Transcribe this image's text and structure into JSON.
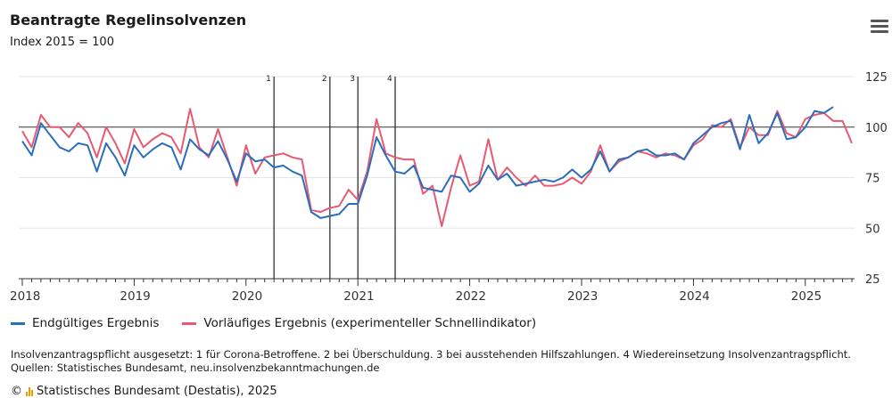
{
  "header": {
    "title": "Beantragte Regelinsolvenzen",
    "subtitle": "Index 2015 = 100",
    "menu_icon": "hamburger-menu-icon"
  },
  "legend": {
    "series1": "Endgültiges Ergebnis",
    "series2": "Vorläufiges Ergebnis (experimenteller Schnellindikator)"
  },
  "notes": {
    "line1": "Insolvenzantragspflicht ausgesetzt: 1 für Corona-Betroffene. 2 bei Überschuldung. 3 bei ausstehenden Hilfszahlungen. 4 Wiedereinsetzung Insolvenzantragspflicht.",
    "line2": "Quellen: Statistisches Bundesamt, neu.insolvenzbekanntmachungen.de"
  },
  "credit": "Statistisches Bundesamt (Destatis), 2025",
  "colors": {
    "final": "#2a6ebb",
    "preliminary": "#e85a71",
    "reference": "#333333",
    "grid": "#e6e6e6"
  },
  "chart_data": {
    "type": "line",
    "x_start": "2018-01",
    "x_ticks": [
      "2018",
      "2019",
      "2020",
      "2021",
      "2022",
      "2023",
      "2024",
      "2025"
    ],
    "y_ticks": [
      25,
      50,
      75,
      100,
      125
    ],
    "ylim": [
      25,
      125
    ],
    "reference_line": 100,
    "grid": true,
    "legend_position": "bottom",
    "vertical_markers": [
      {
        "label": "1",
        "date": "2020-04"
      },
      {
        "label": "2",
        "date": "2020-10"
      },
      {
        "label": "3",
        "date": "2021-01"
      },
      {
        "label": "4",
        "date": "2021-05"
      }
    ],
    "series": [
      {
        "name": "Endgültiges Ergebnis",
        "values": [
          93,
          86,
          102,
          96,
          90,
          88,
          92,
          91,
          78,
          92,
          85,
          76,
          91,
          85,
          89,
          92,
          90,
          79,
          94,
          89,
          86,
          93,
          84,
          73,
          87,
          83,
          84,
          80,
          81,
          78,
          76,
          58,
          55,
          56,
          57,
          62,
          62,
          76,
          95,
          86,
          78,
          77,
          81,
          70,
          69,
          68,
          76,
          75,
          68,
          72,
          81,
          74,
          77,
          71,
          72,
          73,
          74,
          73,
          75,
          79,
          75,
          79,
          88,
          78,
          84,
          85,
          88,
          89,
          86,
          86,
          87,
          84,
          92,
          96,
          100,
          102,
          103,
          89,
          106,
          92,
          97,
          107,
          94,
          95,
          100,
          108,
          107,
          110
        ]
      },
      {
        "name": "Vorläufiges Ergebnis (experimenteller Schnellindikator)",
        "values": [
          98,
          90,
          106,
          100,
          100,
          95,
          102,
          97,
          85,
          100,
          92,
          82,
          99,
          90,
          94,
          97,
          95,
          87,
          109,
          90,
          85,
          99,
          85,
          71,
          91,
          77,
          85,
          86,
          87,
          85,
          84,
          59,
          58,
          60,
          61,
          69,
          64,
          78,
          104,
          87,
          85,
          84,
          84,
          67,
          71,
          51,
          70,
          86,
          71,
          73,
          94,
          74,
          80,
          75,
          71,
          76,
          71,
          71,
          72,
          75,
          72,
          78,
          91,
          78,
          83,
          85,
          88,
          87,
          85,
          87,
          86,
          84,
          91,
          94,
          101,
          100,
          104,
          90,
          100,
          96,
          96,
          108,
          97,
          95,
          104,
          106,
          107,
          103,
          103,
          92
        ]
      }
    ]
  }
}
